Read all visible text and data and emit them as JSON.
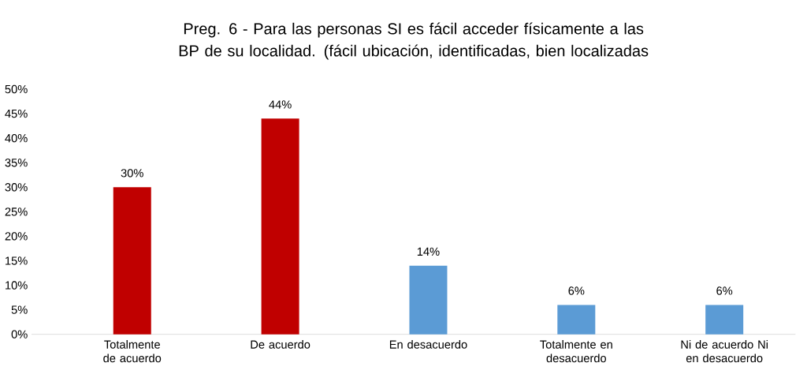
{
  "chart_data": {
    "type": "bar",
    "title": "Preg. 6 - Para las personas SI es fácil acceder físicamente a las BP de su localidad. (fácil ubicación, identificadas, bien localizadas",
    "categories": [
      "Totalmente de acuerdo",
      "De acuerdo",
      "En desacuerdo",
      "Totalmente en desacuerdo",
      "Ni de acuerdo Ni en desacuerdo"
    ],
    "values": [
      30,
      44,
      14,
      6,
      6
    ],
    "colors": [
      "#c00000",
      "#c00000",
      "#5b9bd5",
      "#5b9bd5",
      "#5b9bd5"
    ],
    "value_labels": [
      "30%",
      "44%",
      "14%",
      "6%",
      "6%"
    ],
    "ylim": [
      0,
      50
    ],
    "yticks": [
      {
        "value": 0,
        "label": "0%"
      },
      {
        "value": 5,
        "label": "5%"
      },
      {
        "value": 10,
        "label": "10%"
      },
      {
        "value": 15,
        "label": "15%"
      },
      {
        "value": 20,
        "label": "20%"
      },
      {
        "value": 25,
        "label": "25%"
      },
      {
        "value": 30,
        "label": "30%"
      },
      {
        "value": 35,
        "label": "35%"
      },
      {
        "value": 40,
        "label": "40%"
      },
      {
        "value": 45,
        "label": "45%"
      },
      {
        "value": 50,
        "label": "50%"
      }
    ]
  }
}
